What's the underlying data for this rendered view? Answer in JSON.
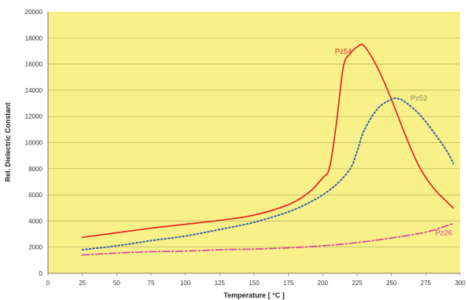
{
  "chart_data": {
    "type": "line",
    "title": "",
    "xlabel": "Temperature [ °C ]",
    "ylabel": "Rel. Dielectric Constant",
    "xlim": [
      0,
      300
    ],
    "ylim": [
      0,
      20000
    ],
    "xticks": [
      "0",
      "25",
      "50",
      "75",
      "100",
      "125",
      "150",
      "175",
      "200",
      "225",
      "250",
      "275",
      "300"
    ],
    "yticks": [
      "0",
      "2000",
      "4000",
      "6000",
      "8000",
      "10000",
      "12000",
      "14000",
      "16000",
      "18000",
      "20000"
    ],
    "grid": "horizontal",
    "background": "#f8f088",
    "series": [
      {
        "name": "Pz54",
        "color": "#e8231f",
        "style": "solid",
        "x": [
          25,
          50,
          75,
          100,
          125,
          150,
          175,
          190,
          200,
          205,
          210,
          215,
          220,
          225,
          230,
          240,
          250,
          260,
          270,
          280,
          290,
          295
        ],
        "y": [
          2750,
          3100,
          3450,
          3750,
          4050,
          4450,
          5250,
          6200,
          7300,
          8100,
          11500,
          15800,
          16800,
          17300,
          17400,
          15700,
          13300,
          10600,
          8200,
          6600,
          5500,
          5000
        ]
      },
      {
        "name": "Pz52",
        "color": "#3a5fa8",
        "style": "dotted",
        "x": [
          25,
          50,
          75,
          100,
          125,
          150,
          175,
          190,
          200,
          210,
          220,
          225,
          230,
          240,
          250,
          255,
          260,
          270,
          280,
          290,
          295
        ],
        "y": [
          1800,
          2100,
          2500,
          2850,
          3350,
          3900,
          4700,
          5400,
          6000,
          6800,
          8000,
          9300,
          10900,
          12600,
          13300,
          13350,
          13100,
          12200,
          10900,
          9400,
          8400
        ]
      },
      {
        "name": "Pz26",
        "color": "#d9469a",
        "style": "dashdot",
        "x": [
          25,
          50,
          75,
          100,
          125,
          150,
          175,
          200,
          225,
          250,
          275,
          295
        ],
        "y": [
          1400,
          1550,
          1650,
          1700,
          1800,
          1850,
          1950,
          2100,
          2350,
          2700,
          3150,
          3800
        ]
      }
    ],
    "labels": [
      {
        "text": "Pz54",
        "color": "#e8231f",
        "x": 215,
        "y": 16800
      },
      {
        "text": "Pz52",
        "color": "#8a8a5a",
        "x": 270,
        "y": 13200
      },
      {
        "text": "Pz26",
        "color": "#d9469a",
        "x": 288,
        "y": 2900
      }
    ]
  }
}
